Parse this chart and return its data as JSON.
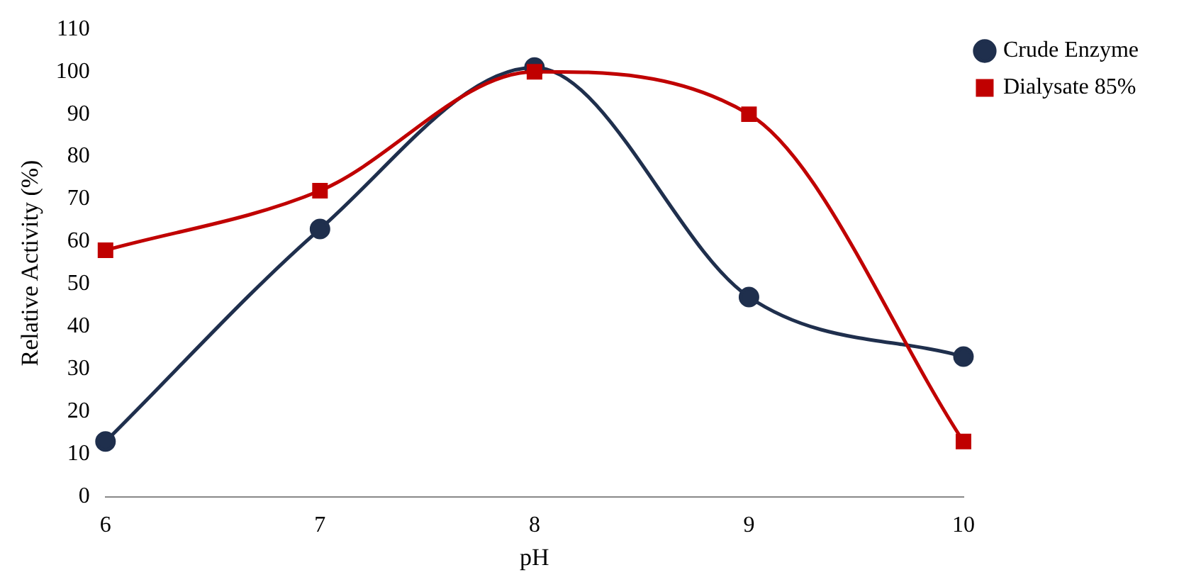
{
  "chart_data": {
    "type": "line",
    "xlabel": "pH",
    "ylabel": "Relative Activity (%)",
    "x": [
      6,
      7,
      8,
      9,
      10
    ],
    "series": [
      {
        "name": "Crude Enzyme",
        "color": "#1f2f4d",
        "values": [
          13,
          63,
          101,
          47,
          33
        ],
        "marker": "circle"
      },
      {
        "name": "Dialysate 85%",
        "color": "#c00000",
        "values": [
          58,
          72,
          100,
          90,
          13
        ],
        "marker": "square"
      }
    ],
    "xlim": [
      6,
      10
    ],
    "xticks": [
      6,
      7,
      8,
      9,
      10
    ],
    "ylim": [
      0,
      110
    ],
    "yticks": [
      0,
      10,
      20,
      30,
      40,
      50,
      60,
      70,
      80,
      90,
      100,
      110
    ],
    "grid": false,
    "legend": "top right",
    "line_style": "solid"
  }
}
